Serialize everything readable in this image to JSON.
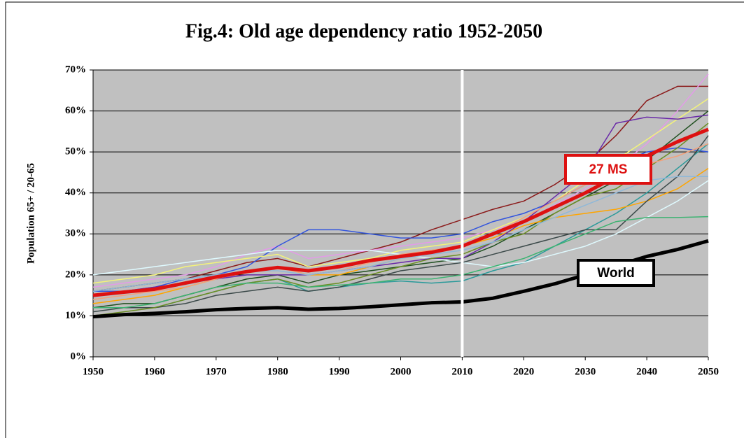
{
  "chart_data": {
    "type": "line",
    "title": "Fig.4: Old age dependency ratio 1952-2050",
    "y_label": "Population 65+ / 20-65",
    "x": [
      1950,
      1955,
      1960,
      1965,
      1970,
      1975,
      1980,
      1985,
      1990,
      1995,
      2000,
      2005,
      2010,
      2015,
      2020,
      2025,
      2030,
      2035,
      2040,
      2045,
      2050
    ],
    "xlim": [
      1950,
      2050
    ],
    "xticks": [
      1950,
      1960,
      1970,
      1980,
      1990,
      2000,
      2010,
      2020,
      2030,
      2040,
      2050
    ],
    "ylim": [
      0,
      70
    ],
    "yticks": [
      {
        "value": 0,
        "label": "0%"
      },
      {
        "value": 10,
        "label": "10%"
      },
      {
        "value": 20,
        "label": "20%"
      },
      {
        "value": 30,
        "label": "30%"
      },
      {
        "value": 40,
        "label": "40%"
      },
      {
        "value": 50,
        "label": "50%"
      },
      {
        "value": 60,
        "label": "60%"
      },
      {
        "value": 70,
        "label": "70%"
      }
    ],
    "grid": true,
    "divider_x": 2010,
    "series": [
      {
        "color": "#8b1a1a",
        "values": [
          16,
          17,
          18,
          19,
          21,
          23,
          24,
          22,
          24,
          26,
          28,
          31,
          33.5,
          36,
          38,
          42,
          47,
          54,
          62.5,
          66,
          66
        ]
      },
      {
        "color": "#e39be8",
        "values": [
          17,
          18,
          19,
          20,
          22,
          25,
          27,
          24,
          25,
          26,
          27,
          28,
          29,
          31,
          33,
          37,
          41,
          46,
          52,
          60,
          69
        ]
      },
      {
        "color": "#1f4f1f",
        "values": [
          12,
          13,
          13,
          15,
          17,
          19,
          20,
          18,
          20,
          21,
          22,
          23,
          24,
          27,
          31,
          35,
          39,
          43,
          48,
          54,
          60
        ]
      },
      {
        "color": "#3355dd",
        "values": [
          16,
          16,
          17,
          19,
          20,
          22,
          27,
          31,
          31,
          30,
          29,
          29,
          30,
          33,
          35,
          38,
          42,
          47,
          50,
          51,
          50
        ]
      },
      {
        "color": "#f3f37a",
        "values": [
          18,
          19,
          20,
          22,
          23,
          24,
          25,
          22,
          23,
          24,
          26,
          27,
          28,
          31,
          34,
          38,
          43,
          48,
          53,
          58,
          63
        ]
      },
      {
        "color": "#2a9a9a",
        "values": [
          12,
          12,
          12,
          14,
          16,
          18,
          19,
          16,
          17,
          18,
          18.5,
          18,
          18.5,
          21,
          23,
          27,
          31,
          35,
          40,
          46,
          52
        ]
      },
      {
        "color": "#ffa500",
        "values": [
          13,
          14,
          15,
          17,
          19,
          21,
          22,
          20,
          20,
          22,
          24,
          26,
          27,
          29,
          32,
          34,
          35,
          36,
          38,
          41,
          46
        ]
      },
      {
        "color": "#dffaff",
        "values": [
          20,
          21,
          22,
          23,
          24,
          25,
          26,
          26,
          26,
          26,
          25,
          24,
          23,
          22,
          23,
          25,
          27,
          30,
          34,
          38,
          43
        ]
      },
      {
        "color": "#3c4a4a",
        "values": [
          11,
          12,
          12,
          13,
          15,
          16,
          17,
          16,
          17,
          19,
          21,
          22,
          23,
          25,
          27,
          29,
          31,
          31,
          38,
          44,
          54
        ]
      },
      {
        "color": "#6a2aa8",
        "values": [
          15,
          16,
          17,
          18,
          19,
          20,
          20,
          20,
          21,
          22,
          23,
          24,
          24,
          28,
          33,
          39,
          45,
          57,
          58.5,
          58,
          59
        ]
      },
      {
        "color": "#6b8e23",
        "values": [
          10,
          11,
          12,
          14,
          16,
          18,
          19,
          17,
          18,
          20,
          22,
          24,
          25,
          28,
          30,
          35,
          39,
          41,
          46,
          51,
          57
        ]
      },
      {
        "color": "#f4a07a",
        "values": [
          14,
          15,
          16,
          17,
          19,
          21,
          22,
          20,
          21,
          23,
          25,
          26,
          27,
          30,
          34,
          38,
          42,
          45,
          47,
          49,
          52
        ]
      },
      {
        "color": "#3cb371",
        "values": [
          12,
          12,
          13,
          15,
          17,
          18,
          18,
          17,
          17.5,
          18,
          19,
          19,
          20,
          22,
          24,
          27,
          30,
          33,
          34,
          34,
          34.2
        ]
      },
      {
        "color": "#8fb8d8",
        "values": [
          16,
          17,
          18,
          19,
          20,
          21,
          21,
          20,
          21,
          22,
          24,
          25,
          26,
          28,
          31,
          34,
          37,
          40,
          43,
          44,
          44
        ]
      },
      {
        "name": "27 MS",
        "color": "#dd1111",
        "values": [
          15,
          15.8,
          16.5,
          18,
          19.5,
          20.8,
          21.8,
          21,
          22,
          23.5,
          24.5,
          25.5,
          27,
          30,
          33,
          36.5,
          40,
          44,
          49,
          52.5,
          55.5
        ]
      },
      {
        "name": "World",
        "color": "#000000",
        "values": [
          9.8,
          10.3,
          10.6,
          11,
          11.5,
          11.8,
          12,
          11.6,
          11.8,
          12.2,
          12.7,
          13.2,
          13.4,
          14.3,
          16,
          17.8,
          20,
          22.2,
          24.5,
          26.2,
          28.3
        ]
      }
    ]
  }
}
